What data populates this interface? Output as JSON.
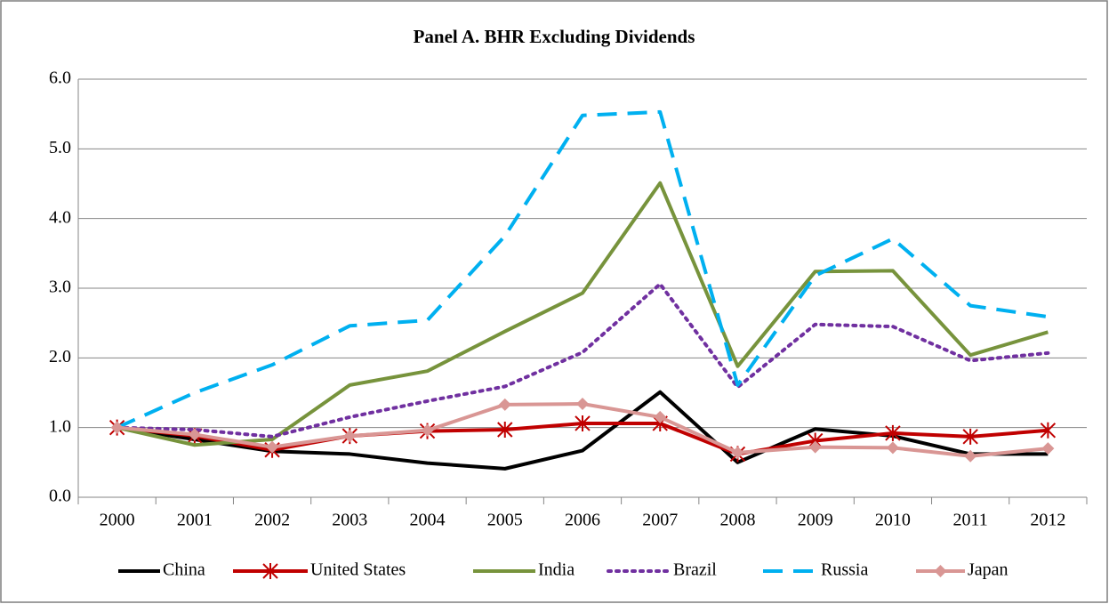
{
  "chart_data": {
    "type": "line",
    "title": "Panel A. BHR Excluding Dividends",
    "categories": [
      "2000",
      "2001",
      "2002",
      "2003",
      "2004",
      "2005",
      "2006",
      "2007",
      "2008",
      "2009",
      "2010",
      "2011",
      "2012"
    ],
    "series": [
      {
        "name": "China",
        "color": "#000000",
        "style": "solid",
        "marker": "none",
        "values": [
          1.0,
          0.83,
          0.66,
          0.62,
          0.49,
          0.41,
          0.67,
          1.51,
          0.5,
          0.98,
          0.88,
          0.62,
          0.62
        ]
      },
      {
        "name": "United States",
        "color": "#c00000",
        "style": "solid",
        "marker": "asterisk",
        "values": [
          1.0,
          0.88,
          0.68,
          0.88,
          0.95,
          0.97,
          1.06,
          1.06,
          0.62,
          0.81,
          0.92,
          0.87,
          0.96
        ]
      },
      {
        "name": "India",
        "color": "#77933c",
        "style": "solid",
        "marker": "none",
        "values": [
          1.0,
          0.75,
          0.83,
          1.61,
          1.81,
          2.38,
          2.93,
          4.51,
          1.88,
          3.24,
          3.25,
          2.04,
          2.37
        ]
      },
      {
        "name": "Brazil",
        "color": "#7030a0",
        "style": "dotted",
        "marker": "none",
        "values": [
          1.0,
          0.97,
          0.87,
          1.15,
          1.38,
          1.59,
          2.08,
          3.06,
          1.58,
          2.48,
          2.45,
          1.96,
          2.07
        ]
      },
      {
        "name": "Russia",
        "color": "#00b0f0",
        "style": "dashed",
        "marker": "none",
        "values": [
          1.0,
          1.5,
          1.9,
          2.46,
          2.54,
          3.75,
          5.48,
          5.53,
          1.61,
          3.18,
          3.71,
          2.75,
          2.59
        ]
      },
      {
        "name": "Japan",
        "color": "#d99694",
        "style": "solid",
        "marker": "diamond",
        "values": [
          1.0,
          0.9,
          0.72,
          0.88,
          0.96,
          1.33,
          1.34,
          1.15,
          0.64,
          0.72,
          0.71,
          0.59,
          0.7
        ]
      }
    ],
    "ylim": [
      0,
      6
    ],
    "yticks": [
      {
        "value": 0,
        "label": "0.0"
      },
      {
        "value": 1,
        "label": "1.0"
      },
      {
        "value": 2,
        "label": "2.0"
      },
      {
        "value": 3,
        "label": "3.0"
      },
      {
        "value": 4,
        "label": "4.0"
      },
      {
        "value": 5,
        "label": "5.0"
      },
      {
        "value": 6,
        "label": "6.0"
      }
    ],
    "grid": true,
    "legend": "bottom"
  }
}
